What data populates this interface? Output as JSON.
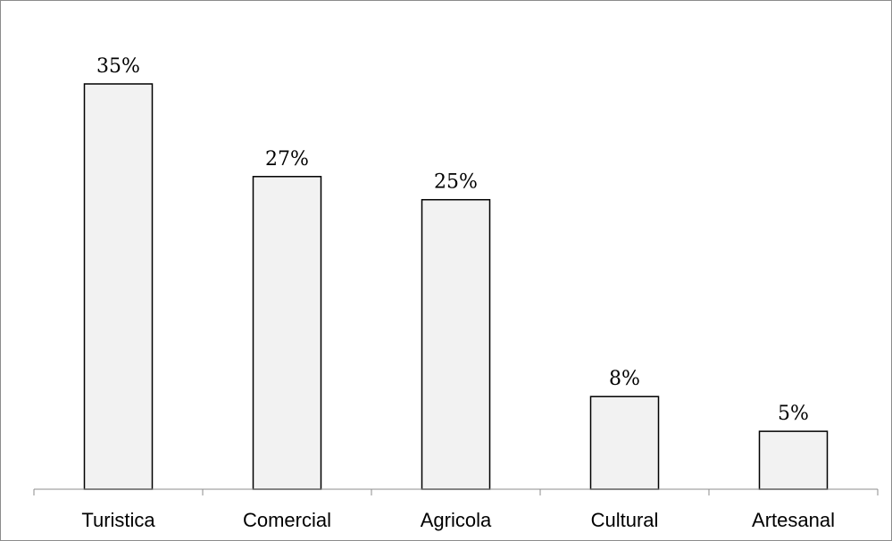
{
  "chart_data": {
    "type": "bar",
    "categories": [
      "Turistica",
      "Comercial",
      "Agricola",
      "Cultural",
      "Artesanal"
    ],
    "values": [
      35,
      27,
      25,
      8,
      5
    ],
    "data_labels": [
      "35%",
      "27%",
      "25%",
      "8%",
      "5%"
    ],
    "value_unit": "%",
    "ylim": [
      0,
      40
    ],
    "grid": false,
    "legend": "none",
    "colors": {
      "bar_fill": "#f2f2f2",
      "bar_stroke": "#000000",
      "axis": "#8c8c8c"
    }
  }
}
